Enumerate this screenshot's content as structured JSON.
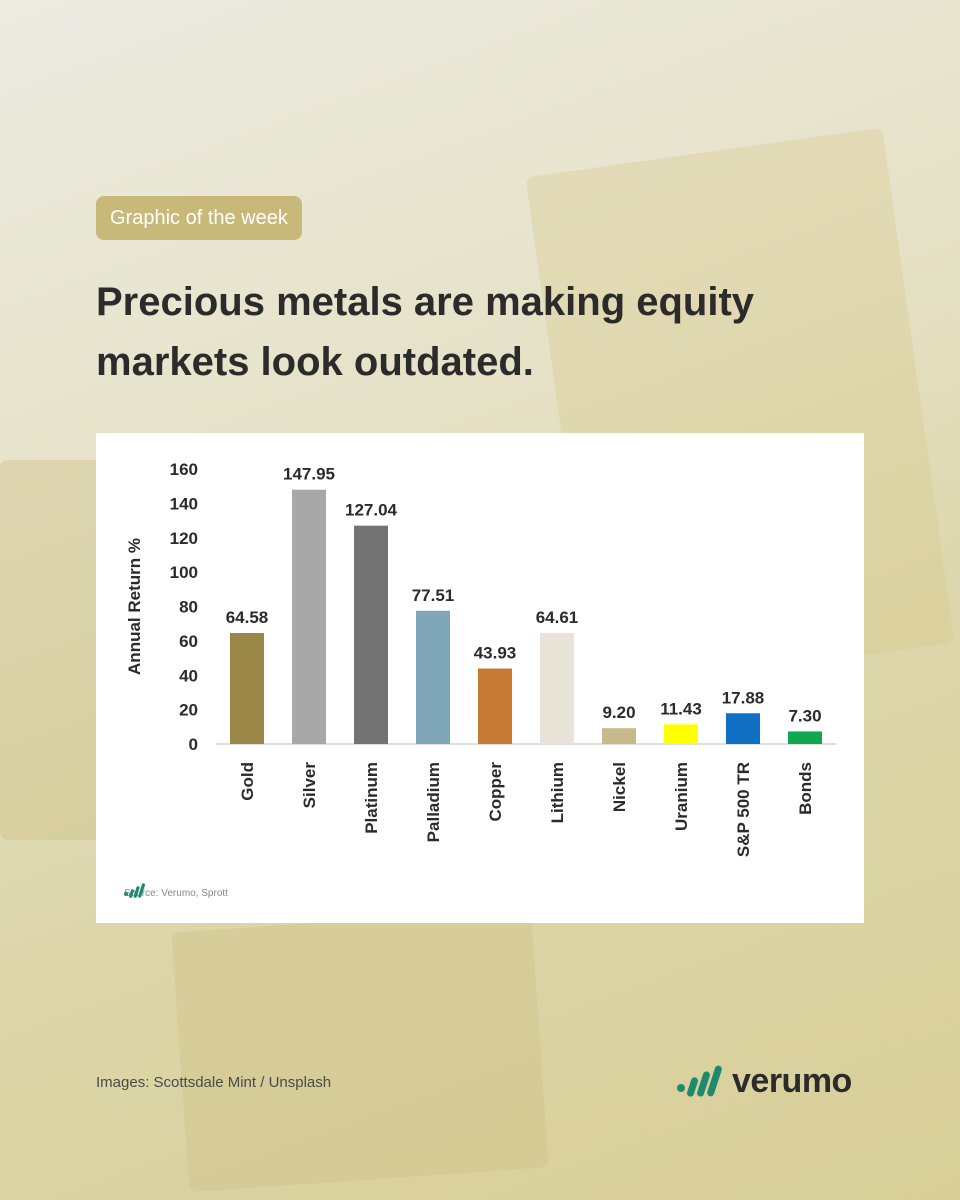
{
  "tag": "Graphic of the week",
  "headline": {
    "line1": "Precious metals are making equity",
    "line2": "markets look outdated."
  },
  "chart_data": {
    "type": "bar",
    "ylabel": "Annual Return %",
    "ylim": [
      0,
      160
    ],
    "yticks": [
      0,
      20,
      40,
      60,
      80,
      100,
      120,
      140,
      160
    ],
    "grid": false,
    "categories": [
      "Gold",
      "Silver",
      "Platinum",
      "Palladium",
      "Copper",
      "Lithium",
      "Nickel",
      "Uranium",
      "S&P 500 TR",
      "Bonds"
    ],
    "values": [
      64.58,
      147.95,
      127.04,
      77.51,
      43.93,
      64.61,
      9.2,
      11.43,
      17.88,
      7.3
    ],
    "value_labels": [
      "64.58",
      "147.95",
      "127.04",
      "77.51",
      "43.93",
      "64.61",
      "9.20",
      "11.43",
      "17.88",
      "7.30"
    ],
    "colors": [
      "#9a8647",
      "#a8a8a8",
      "#737373",
      "#7fa6b9",
      "#c87b35",
      "#e8e4d8",
      "#c8b98a",
      "#ffff00",
      "#0f6fc2",
      "#0fa851"
    ]
  },
  "source": "Source: Verumo, Sprott",
  "footer": {
    "credit": "Images: Scottsdale Mint / Unsplash",
    "brand": "verumo"
  },
  "colors": {
    "tag_bg": "#c8b97a",
    "brand_green": "#1e8a6e",
    "headline": "#2b2b2b"
  }
}
